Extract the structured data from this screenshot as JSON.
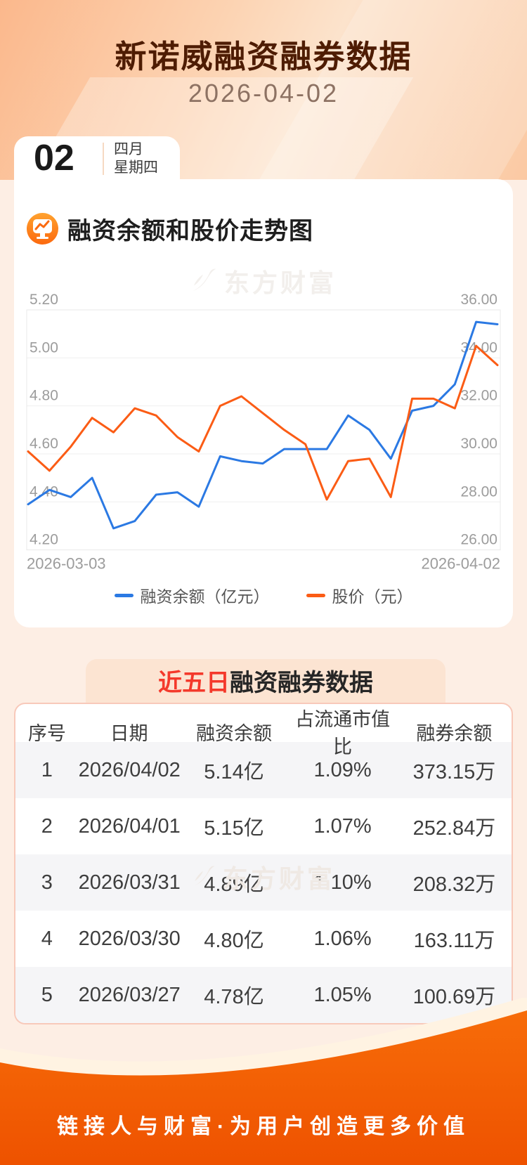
{
  "page": {
    "title": "新诺威融资融券数据",
    "date": "2026-04-02",
    "watermark_text": "东方财富",
    "footer_slogan": "链接人与财富·为用户创造更多价值"
  },
  "date_badge": {
    "day": "02",
    "month": "四月",
    "weekday": "星期四"
  },
  "chart_section": {
    "title": "融资余额和股价走势图",
    "legend": [
      {
        "label": "融资余额（亿元）",
        "color": "#2b79e3"
      },
      {
        "label": "股价（元）",
        "color": "#fb5c15"
      }
    ]
  },
  "chart_data": {
    "type": "line",
    "title": "融资余额和股价走势图",
    "x_axis": {
      "start_label": "2026-03-03",
      "end_label": "2026-04-02",
      "points": 23
    },
    "left_axis": {
      "name": "融资余额（亿元）",
      "ticks": [
        "5.20",
        "5.00",
        "4.80",
        "4.60",
        "4.40",
        "4.20"
      ],
      "min": 4.2,
      "max": 5.2
    },
    "right_axis": {
      "name": "股价（元）",
      "ticks": [
        "36.00",
        "34.00",
        "32.00",
        "30.00",
        "28.00",
        "26.00"
      ],
      "min": 26,
      "max": 36
    },
    "grid": true,
    "legend_position": "bottom",
    "series": [
      {
        "name": "融资余额（亿元）",
        "axis": "left",
        "color": "#2b79e3",
        "values": [
          4.39,
          4.45,
          4.42,
          4.5,
          4.29,
          4.32,
          4.43,
          4.44,
          4.38,
          4.59,
          4.57,
          4.56,
          4.62,
          4.62,
          4.62,
          4.76,
          4.7,
          4.58,
          4.78,
          4.8,
          4.89,
          5.15,
          5.14
        ]
      },
      {
        "name": "股价（元）",
        "axis": "right",
        "color": "#fb5c15",
        "values": [
          30.1,
          29.3,
          30.3,
          31.5,
          30.9,
          31.9,
          31.6,
          30.7,
          30.1,
          32.0,
          32.4,
          31.7,
          31.0,
          30.4,
          28.1,
          29.7,
          29.8,
          28.2,
          32.3,
          32.3,
          31.9,
          34.5,
          33.7
        ]
      }
    ]
  },
  "table_section": {
    "title_highlight": "近五日",
    "title_rest": "融资融券数据",
    "columns": [
      "序号",
      "日期",
      "融资余额",
      "占流通市值比",
      "融券余额"
    ],
    "rows": [
      [
        "1",
        "2026/04/02",
        "5.14亿",
        "1.09%",
        "373.15万"
      ],
      [
        "2",
        "2026/04/01",
        "5.15亿",
        "1.07%",
        "252.84万"
      ],
      [
        "3",
        "2026/03/31",
        "4.89亿",
        "1.10%",
        "208.32万"
      ],
      [
        "4",
        "2026/03/30",
        "4.80亿",
        "1.06%",
        "163.11万"
      ],
      [
        "5",
        "2026/03/27",
        "4.78亿",
        "1.05%",
        "100.69万"
      ]
    ]
  }
}
